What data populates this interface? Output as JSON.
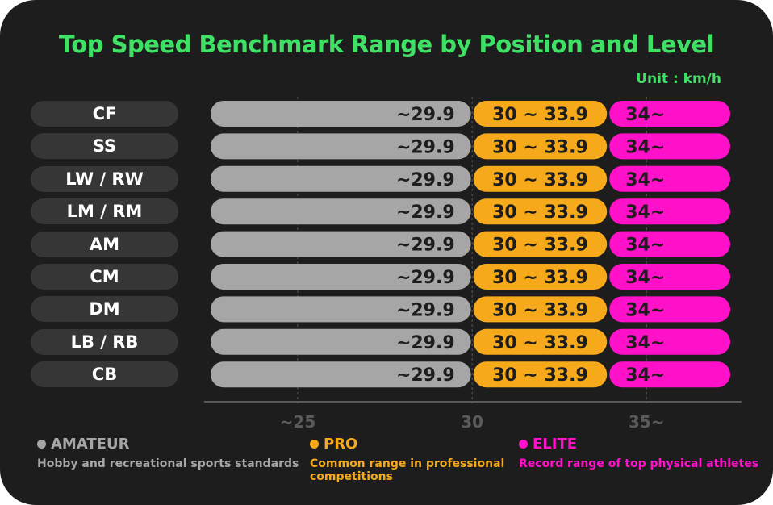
{
  "title": "Top Speed Benchmark Range by Position and Level",
  "unit": "Unit : km/h",
  "colors": {
    "background": "#1d1d1d",
    "title": "#3fe065",
    "amateur": "#a6a6a6",
    "pro": "#f5a91b",
    "elite": "#ff10c9",
    "label_bg": "#363636",
    "axis": "#5a5a5a"
  },
  "chart_data": {
    "type": "bar",
    "orientation": "horizontal-stacked-range",
    "categories": [
      "CF",
      "SS",
      "LW / RW",
      "LM / RM",
      "AM",
      "CM",
      "DM",
      "LB / RB",
      "CB"
    ],
    "xlim": [
      22.5,
      37.4
    ],
    "x_ticks": [
      {
        "value": 25,
        "label": "~25"
      },
      {
        "value": 30,
        "label": "30"
      },
      {
        "value": 35,
        "label": "35~"
      }
    ],
    "grid": "vertical dashed at ticks",
    "series": [
      {
        "name": "AMATEUR",
        "start": 22.5,
        "end": 30,
        "label": "~29.9",
        "color": "#a6a6a6"
      },
      {
        "name": "PRO",
        "start": 30,
        "end": 33.9,
        "label": "30 ~ 33.9",
        "color": "#f5a91b"
      },
      {
        "name": "ELITE",
        "start": 33.9,
        "end": 37.4,
        "label": "34~",
        "color": "#ff10c9"
      }
    ]
  },
  "legend": [
    {
      "name": "AMATEUR",
      "description": "Hobby and recreational sports standards",
      "color": "#a6a6a6"
    },
    {
      "name": "PRO",
      "description": "Common range in professional competitions",
      "color": "#f5a91b"
    },
    {
      "name": "ELITE",
      "description": "Record range of top physical athletes",
      "color": "#ff10c9"
    }
  ]
}
